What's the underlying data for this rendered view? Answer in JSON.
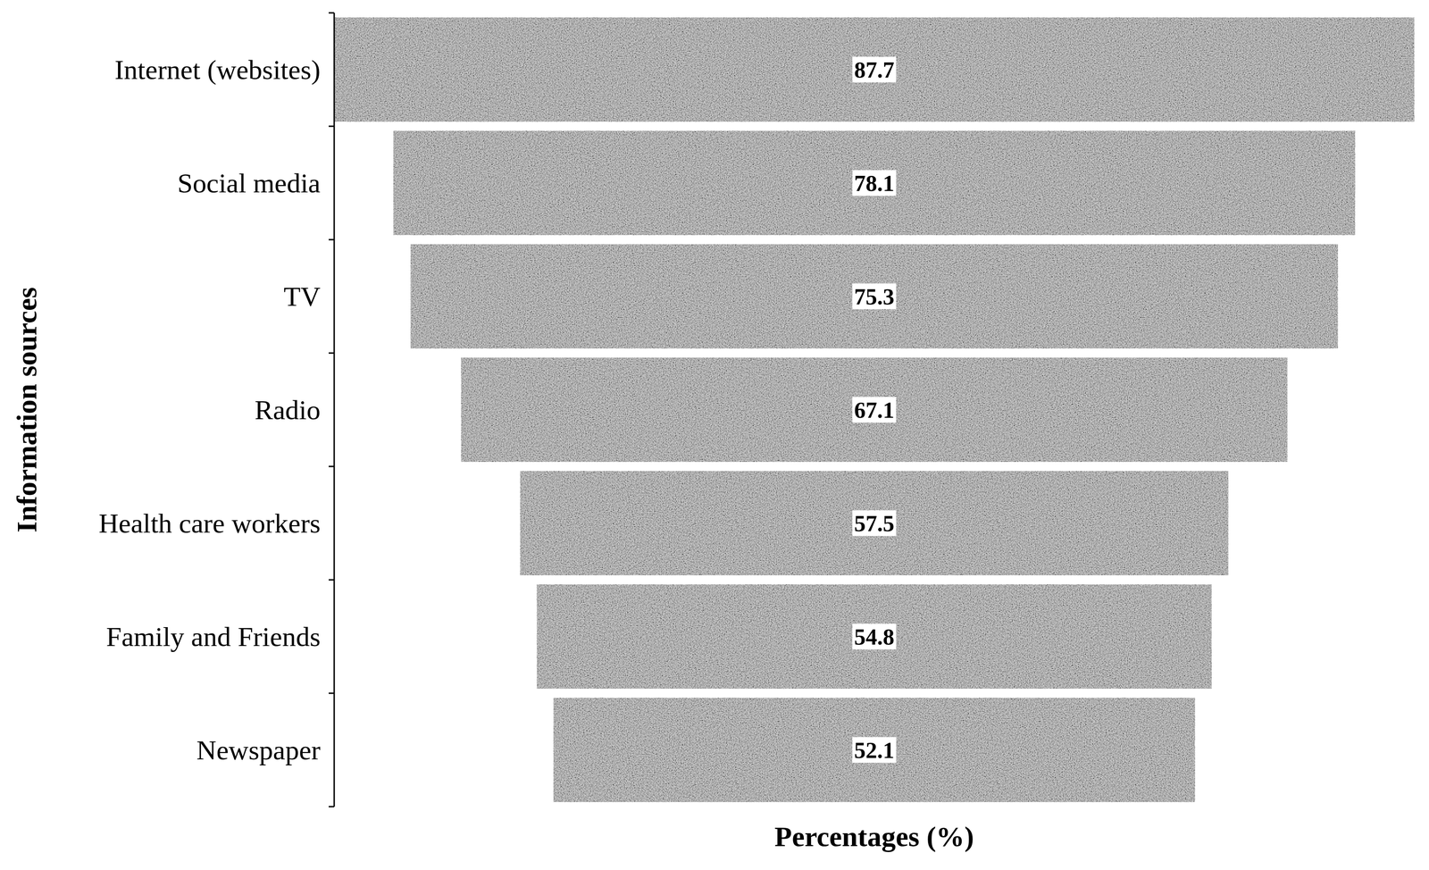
{
  "chart_data": {
    "type": "funnel",
    "orientation": "horizontal",
    "x_label": "Percentages (%)",
    "y_label": "Information sources",
    "categories": [
      "Internet (websites)",
      "Social media",
      "TV",
      "Radio",
      "Health care workers",
      "Family and Friends",
      "Newspaper"
    ],
    "values": [
      87.7,
      78.1,
      75.3,
      67.1,
      57.5,
      54.8,
      52.1
    ],
    "color": "#d4d4d4",
    "data_labels": true,
    "tick_labels": "y"
  }
}
